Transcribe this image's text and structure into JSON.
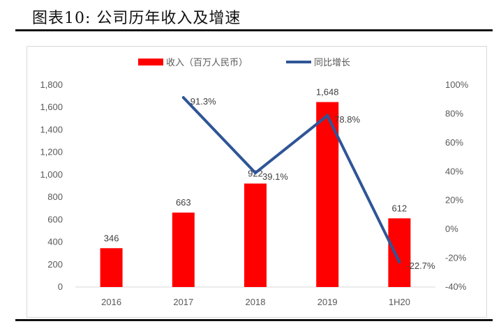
{
  "figure": {
    "title": "图表10:    公司历年收入及增速"
  },
  "chart_data": {
    "type": "bar",
    "categories": [
      "2016",
      "2017",
      "2018",
      "2019",
      "1H20"
    ],
    "series": [
      {
        "name": "收入（百万人民币）",
        "type": "bar",
        "axis": "left",
        "color": "#ff0000",
        "values": [
          346,
          663,
          922,
          1648,
          612
        ],
        "labels": [
          "346",
          "663",
          "922",
          "1,648",
          "612"
        ]
      },
      {
        "name": "同比增长",
        "type": "line",
        "axis": "right",
        "color": "#2f5597",
        "values": [
          null,
          91.3,
          39.1,
          78.8,
          -22.7
        ],
        "labels": [
          "",
          "91.3%",
          "39.1%",
          "78.8%",
          "-22.7%"
        ]
      }
    ],
    "y_left": {
      "range": [
        0,
        1800
      ],
      "ticks": [
        "0",
        "200",
        "400",
        "600",
        "800",
        "1,000",
        "1,200",
        "1,400",
        "1,600",
        "1,800"
      ]
    },
    "y_right": {
      "range": [
        -40,
        100
      ],
      "ticks": [
        "-40%",
        "-20%",
        "0%",
        "20%",
        "40%",
        "60%",
        "80%",
        "100%"
      ]
    },
    "legend": {
      "position": "top"
    },
    "grid": false
  }
}
